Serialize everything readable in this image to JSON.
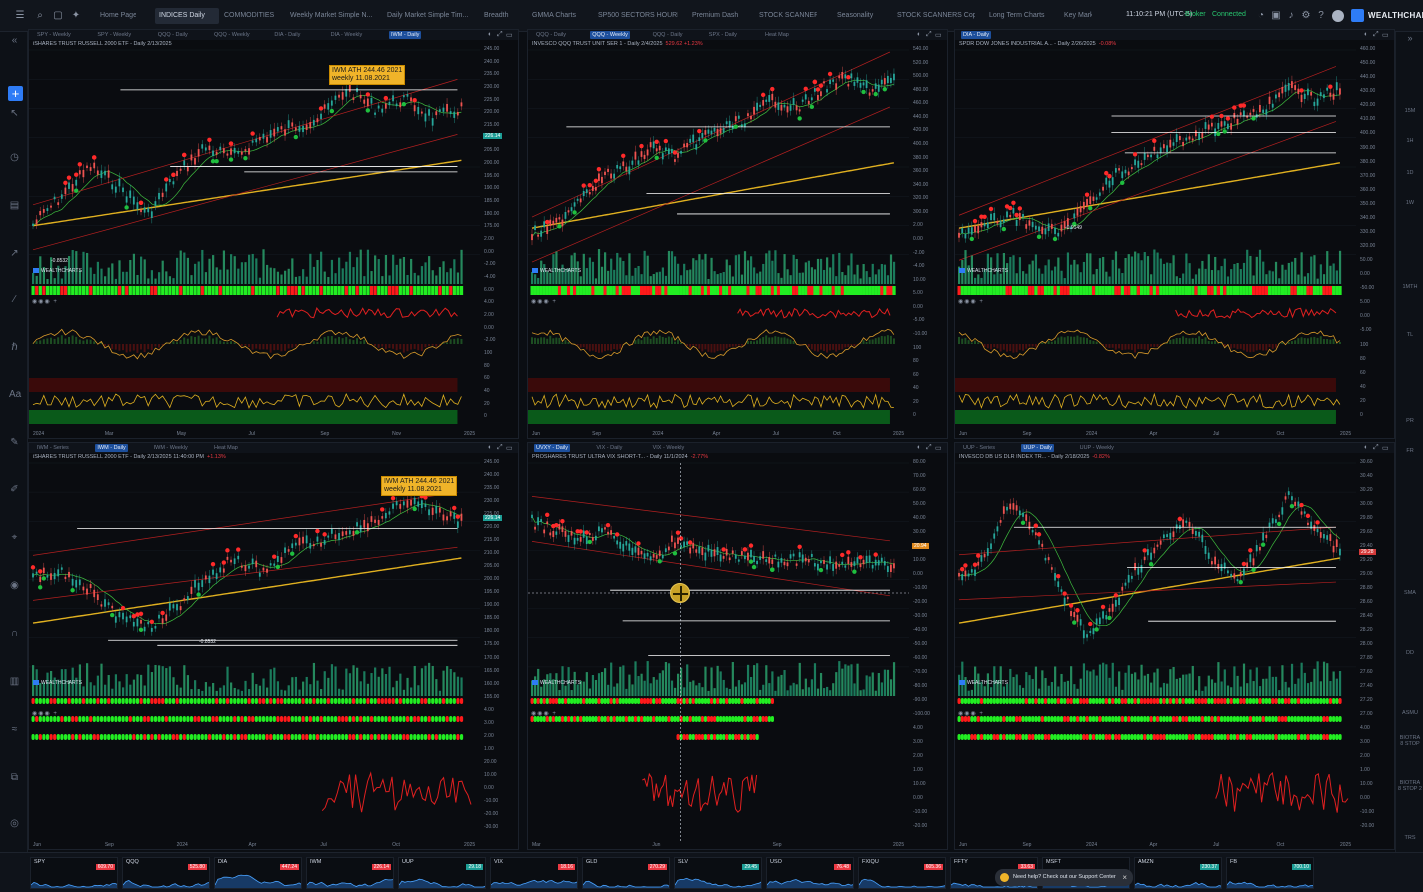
{
  "topbar": {
    "tabs": [
      "Home Page",
      "INDICES Daily",
      "COMMODITIES",
      "Weekly Market Simple N...",
      "Daily Market Simple Tim...",
      "Breadth",
      "GMMA Charts",
      "SP500 SECTORS HOURLY",
      "Premium Dash",
      "STOCK SCANNERS",
      "Seasonality",
      "STOCK SCANNERS Copy",
      "Long Term Charts",
      "Key Market"
    ],
    "active_tab": 1,
    "clock": "11:10:21 PM (UTC-5)",
    "broker": "Broker",
    "connected": "Connected",
    "brand": "WEALTHCHARTS"
  },
  "right_labels": [
    "15M",
    "1H",
    "1D",
    "1W",
    "1MTH",
    "TL",
    "PR",
    "FR",
    "SMA",
    "DD",
    "ASMU",
    "BIOTRA 8 STOP",
    "BIOTRA 8 STOP 2",
    "TRS"
  ],
  "panels": [
    {
      "tabs": [
        "SPY - Weekly",
        "SPY - Weekly",
        "QQQ - Daily",
        "QQQ - Weekly",
        "DIA - Daily",
        "DIA - Weekly",
        "IWM - Daily"
      ],
      "active": 6,
      "title": "iSHARES TRUST RUSSELL 2000 ETF - Daily 2/13/2025",
      "change": "",
      "axis": [
        "245.00",
        "240.00",
        "235.00",
        "230.00",
        "225.00",
        "220.00",
        "215.00",
        "210.00",
        "205.00",
        "200.00",
        "195.00",
        "190.00",
        "185.00",
        "180.00",
        "175.00",
        "2.00",
        "0.00",
        "-2.00",
        "-4.00",
        "6.00",
        "4.00",
        "2.00",
        "0.00",
        "-2.00",
        "100",
        "80",
        "60",
        "40",
        "20",
        "0"
      ],
      "xticks": [
        "2024",
        "Mar",
        "May",
        "Jul",
        "Sep",
        "Nov",
        "2025"
      ],
      "price": "226.14",
      "annotation": [
        "IWM ATH 244.46 2021",
        "weekly 11.08.2021"
      ],
      "low_label": "-0.8532",
      "watermark": "WEALTHCHARTS"
    },
    {
      "tabs": [
        "QQQ - Daily",
        "QQQ - Weekly",
        "QQQ - Daily",
        "SPX - Daily",
        "Heat Map"
      ],
      "active": 1,
      "title": "INVESCO QQQ TRUST UNIT SER 1 - Daily 2/4/2025",
      "change": "529.62 +1.23%",
      "axis": [
        "540.00",
        "520.00",
        "500.00",
        "480.00",
        "460.00",
        "440.00",
        "420.00",
        "400.00",
        "380.00",
        "360.00",
        "340.00",
        "320.00",
        "300.00",
        "2.00",
        "0.00",
        "-2.00",
        "-4.00",
        "10.00",
        "5.00",
        "0.00",
        "-5.00",
        "-10.00",
        "100",
        "80",
        "60",
        "40",
        "20",
        "0"
      ],
      "xticks": [
        "Jun",
        "Sep",
        "2024",
        "Apr",
        "Jul",
        "Oct",
        "2025"
      ],
      "price": "",
      "annotation": [],
      "low_label": "",
      "watermark": "WEALTHCHARTS"
    },
    {
      "tabs": [
        "DIA - Daily"
      ],
      "active": 0,
      "title": "SPDR DOW JONES INDUSTRIAL A... - Daily 2/26/2025",
      "change": "-0.08%",
      "axis": [
        "460.00",
        "450.00",
        "440.00",
        "430.00",
        "420.00",
        "410.00",
        "400.00",
        "390.00",
        "380.00",
        "370.00",
        "360.00",
        "350.00",
        "340.00",
        "330.00",
        "320.00",
        "50.00",
        "0.00",
        "-50.00",
        "5.00",
        "0.00",
        "-5.00",
        "100",
        "80",
        "60",
        "40",
        "20",
        "0"
      ],
      "xticks": [
        "Jun",
        "Sep",
        "2024",
        "Apr",
        "Jul",
        "Oct",
        "2025"
      ],
      "price": "",
      "annotation": [],
      "low_label": "-0.9149",
      "watermark": "WEALTHCHARTS"
    },
    {
      "tabs": [
        "IWM - Series",
        "IWM - Daily",
        "IWM - Weekly",
        "Heat Map"
      ],
      "active": 1,
      "title": "iSHARES TRUST RUSSELL 2000 ETF - Daily 2/13/2025 11:40:00 PM",
      "change": "+1.13%",
      "axis": [
        "245.00",
        "240.00",
        "235.00",
        "230.00",
        "225.00",
        "220.00",
        "215.00",
        "210.00",
        "205.00",
        "200.00",
        "195.00",
        "190.00",
        "185.00",
        "180.00",
        "175.00",
        "170.00",
        "165.00",
        "160.00",
        "155.00",
        "4.00",
        "3.00",
        "2.00",
        "1.00",
        "20.00",
        "10.00",
        "0.00",
        "-10.00",
        "-20.00",
        "-30.00"
      ],
      "xticks": [
        "Jun",
        "Sep",
        "2024",
        "Apr",
        "Jul",
        "Oct",
        "2025"
      ],
      "price": "226.14",
      "annotation": [
        "IWM ATH 244.46 2021",
        "weekly 11.08.2021"
      ],
      "low_label": "-0.8532",
      "watermark": "WEALTHCHARTS"
    },
    {
      "tabs": [
        "UVXY - Daily",
        "VIX - Daily",
        "VIX - Weekly"
      ],
      "active": 0,
      "title": "PROSHARES TRUST ULTRA VIX SHORT-T... - Daily 11/1/2024",
      "change": "-2.77%",
      "axis": [
        "80.00",
        "70.00",
        "60.00",
        "50.00",
        "40.00",
        "30.00",
        "20.00",
        "10.00",
        "0.00",
        "-10.00",
        "-20.00",
        "-30.00",
        "-40.00",
        "-50.00",
        "-60.00",
        "-70.00",
        "-80.00",
        "-90.00",
        "-100.00",
        "4.00",
        "3.00",
        "2.00",
        "1.00",
        "10.00",
        "0.00",
        "-10.00",
        "-20.00"
      ],
      "xticks": [
        "Mar",
        "Jun",
        "Sep",
        "2025"
      ],
      "price": "20.94",
      "annotation": [],
      "low_label": "",
      "watermark": "WEALTHCHARTS"
    },
    {
      "tabs": [
        "UUP - Series",
        "UUP - Daily",
        "UUP - Weekly"
      ],
      "active": 1,
      "title": "INVESCO DB US DLR INDEX TR... - Daily 2/18/2025",
      "change": "-0.82%",
      "axis": [
        "30.60",
        "30.40",
        "30.20",
        "30.00",
        "29.80",
        "29.60",
        "29.40",
        "29.20",
        "29.00",
        "28.80",
        "28.60",
        "28.40",
        "28.20",
        "28.00",
        "27.80",
        "27.60",
        "27.40",
        "27.20",
        "27.00",
        "4.00",
        "3.00",
        "2.00",
        "1.00",
        "10.00",
        "0.00",
        "-10.00",
        "-20.00"
      ],
      "xticks": [
        "Jun",
        "Sep",
        "2024",
        "Apr",
        "Jul",
        "Oct",
        "2025"
      ],
      "price": "29.28",
      "annotation": [],
      "low_label": "",
      "watermark": "WEALTHCHARTS"
    }
  ],
  "tiles": [
    {
      "sym": "SPY",
      "val": "609.70",
      "up": false
    },
    {
      "sym": "QQQ",
      "val": "525.80",
      "up": false
    },
    {
      "sym": "DIA",
      "val": "447.24",
      "up": false
    },
    {
      "sym": "IWM",
      "val": "226.14",
      "up": false
    },
    {
      "sym": "UUP",
      "val": "29.18",
      "up": true
    },
    {
      "sym": "VIX",
      "val": "18.16",
      "up": false
    },
    {
      "sym": "GLD",
      "val": "270.29",
      "up": false
    },
    {
      "sym": "SLV",
      "val": "29.45",
      "up": true
    },
    {
      "sym": "USO",
      "val": "76.48",
      "up": false
    },
    {
      "sym": "FXIQU",
      "val": "605.36",
      "up": false
    },
    {
      "sym": "FFTY",
      "val": "33.63",
      "up": false
    },
    {
      "sym": "MSFT",
      "val": "",
      "up": false
    },
    {
      "sym": "AMZN",
      "val": "230.37",
      "up": true
    },
    {
      "sym": "FB",
      "val": "700.10",
      "up": true
    }
  ],
  "support": "Need help? Check out our Support Center"
}
